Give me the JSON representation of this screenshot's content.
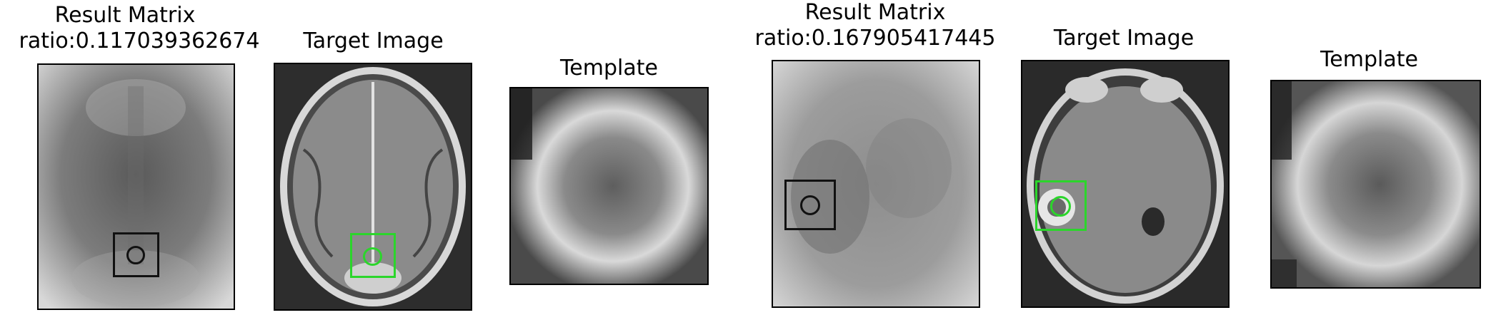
{
  "figure": {
    "left_group": {
      "result_title_line1": "Result Matrix",
      "result_title_line2": "ratio:0.117039362674",
      "target_title": "Target Image",
      "template_title": "Template"
    },
    "right_group": {
      "result_title_line1": "Result Matrix",
      "result_title_line2": "ratio:0.167905417445",
      "target_title": "Target Image",
      "template_title": "Template"
    },
    "colors": {
      "match_marker": "#111111",
      "detection_marker": "#2bd62b",
      "panel_border": "#000000"
    }
  }
}
